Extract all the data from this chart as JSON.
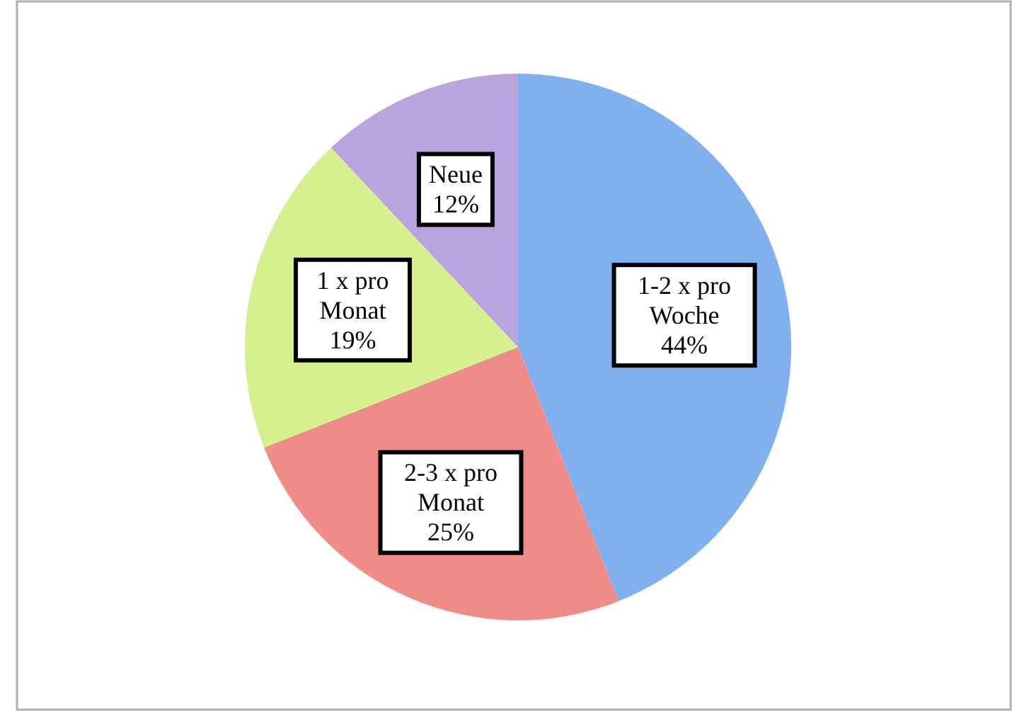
{
  "chart_data": {
    "type": "pie",
    "categories": [
      "1-2 x pro Woche",
      "2-3 x pro Monat",
      "1 x pro Monat",
      "Neue"
    ],
    "values": [
      44,
      25,
      19,
      12
    ],
    "colors": [
      "#80b0f0",
      "#f08c88",
      "#d6f090",
      "#baa4de"
    ],
    "value_labels": [
      "44%",
      "25%",
      "19%",
      "12%"
    ]
  }
}
